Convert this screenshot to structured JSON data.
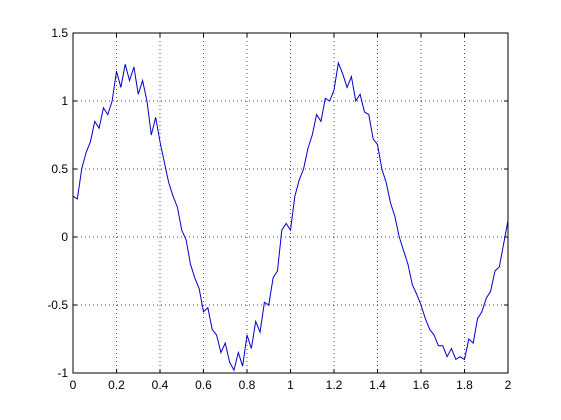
{
  "chart_data": {
    "type": "line",
    "color": "#0000cc",
    "grid": true,
    "xlim": [
      0,
      2
    ],
    "ylim": [
      -1,
      1.5
    ],
    "xticks": [
      0,
      0.2,
      0.4,
      0.6,
      0.8,
      1,
      1.2,
      1.4,
      1.6,
      1.8,
      2
    ],
    "yticks": [
      -1,
      -0.5,
      0,
      0.5,
      1,
      1.5
    ],
    "x": [
      0,
      0.02,
      0.04,
      0.06,
      0.08,
      0.1,
      0.12,
      0.14,
      0.16,
      0.18,
      0.2,
      0.22,
      0.24,
      0.26,
      0.28,
      0.3,
      0.32,
      0.34,
      0.36,
      0.38,
      0.4,
      0.42,
      0.44,
      0.46,
      0.48,
      0.5,
      0.52,
      0.54,
      0.56,
      0.58,
      0.6,
      0.62,
      0.64,
      0.66,
      0.68,
      0.7,
      0.72,
      0.74,
      0.76,
      0.78,
      0.8,
      0.82,
      0.84,
      0.86,
      0.88,
      0.9,
      0.92,
      0.94,
      0.96,
      0.98,
      1,
      1.02,
      1.04,
      1.06,
      1.08,
      1.1,
      1.12,
      1.14,
      1.16,
      1.18,
      1.2,
      1.22,
      1.24,
      1.26,
      1.28,
      1.3,
      1.32,
      1.34,
      1.36,
      1.38,
      1.4,
      1.42,
      1.44,
      1.46,
      1.48,
      1.5,
      1.52,
      1.54,
      1.56,
      1.58,
      1.6,
      1.62,
      1.64,
      1.66,
      1.68,
      1.7,
      1.72,
      1.74,
      1.76,
      1.78,
      1.8,
      1.82,
      1.84,
      1.86,
      1.88,
      1.9,
      1.92,
      1.94,
      1.96,
      1.98,
      2
    ],
    "values": [
      0.3,
      0.28,
      0.5,
      0.62,
      0.7,
      0.85,
      0.8,
      0.95,
      0.9,
      1.0,
      1.22,
      1.1,
      1.27,
      1.15,
      1.25,
      1.05,
      1.15,
      1.0,
      0.75,
      0.88,
      0.7,
      0.55,
      0.4,
      0.3,
      0.22,
      0.05,
      -0.02,
      -0.2,
      -0.3,
      -0.38,
      -0.55,
      -0.52,
      -0.68,
      -0.72,
      -0.85,
      -0.78,
      -0.92,
      -0.98,
      -0.85,
      -0.95,
      -0.72,
      -0.82,
      -0.62,
      -0.7,
      -0.48,
      -0.5,
      -0.3,
      -0.25,
      0.05,
      0.1,
      0.05,
      0.3,
      0.42,
      0.5,
      0.65,
      0.75,
      0.9,
      0.85,
      1.02,
      1.0,
      1.08,
      1.28,
      1.2,
      1.1,
      1.18,
      1.0,
      1.05,
      0.92,
      0.9,
      0.72,
      0.68,
      0.5,
      0.4,
      0.25,
      0.15,
      0.0,
      -0.1,
      -0.2,
      -0.35,
      -0.42,
      -0.5,
      -0.6,
      -0.68,
      -0.72,
      -0.8,
      -0.8,
      -0.88,
      -0.82,
      -0.9,
      -0.88,
      -0.9,
      -0.75,
      -0.78,
      -0.6,
      -0.55,
      -0.45,
      -0.4,
      -0.25,
      -0.22,
      -0.05,
      0.12
    ]
  }
}
